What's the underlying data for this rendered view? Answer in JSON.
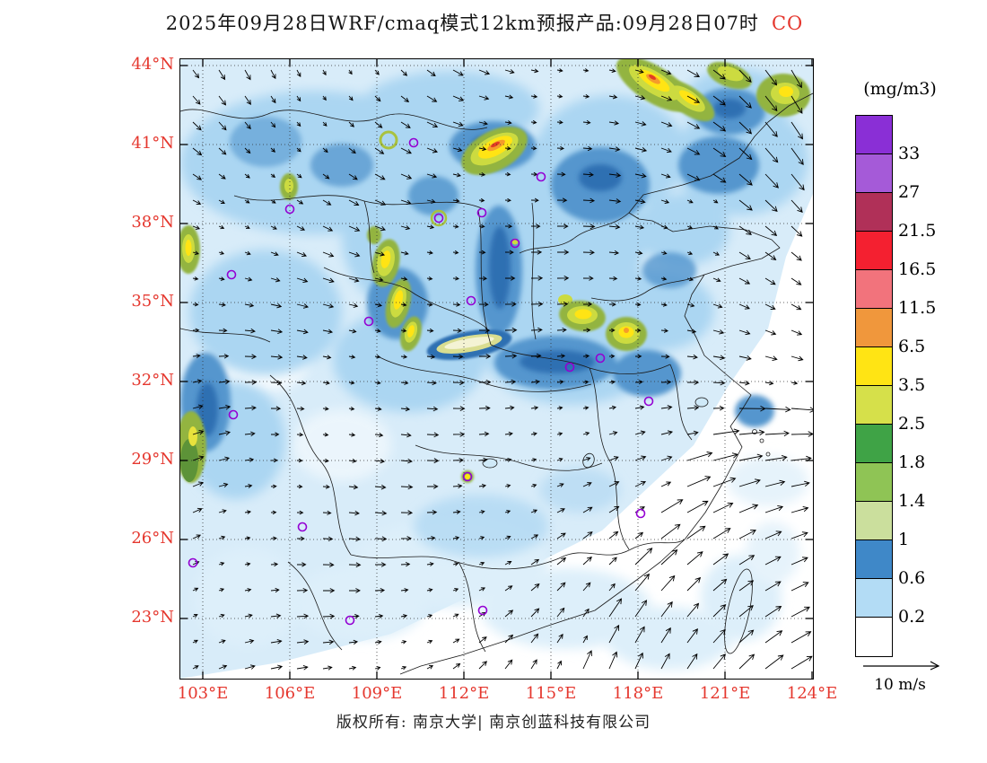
{
  "header": {
    "title": "2025年09月28日WRF/cmaq模式12km预报产品:09月28日07时",
    "pollutant": "CO"
  },
  "axes": {
    "lat_labels": [
      "44°N",
      "41°N",
      "38°N",
      "35°N",
      "32°N",
      "29°N",
      "26°N",
      "23°N"
    ],
    "lon_labels": [
      "103°E",
      "106°E",
      "109°E",
      "112°E",
      "115°E",
      "118°E",
      "121°E",
      "124°E"
    ],
    "label_color": "#e5372e"
  },
  "colorbar": {
    "units": "(mg/m3)",
    "tick_labels": [
      "33",
      "27",
      "21.5",
      "16.5",
      "11.5",
      "6.5",
      "3.5",
      "2.5",
      "1.8",
      "1.4",
      "1",
      "0.6",
      "0.2"
    ],
    "band_colors_top_to_bottom": [
      "#8a2fd6",
      "#a55ad8",
      "#b03058",
      "#f42030",
      "#f2737c",
      "#f0973c",
      "#ffe414",
      "#d6e04a",
      "#3fa346",
      "#8fc455",
      "#cbdf9d",
      "#3f88c8",
      "#b3dcf5",
      "#ffffff"
    ]
  },
  "wind_legend": {
    "label": "10 m/s"
  },
  "footer": {
    "credit": "版权所有: 南京大学| 南京创蓝科技有限公司"
  },
  "chart_data": {
    "type": "heatmap",
    "title": "2025年09月28日WRF/cmaq模式12km预报产品:09月28日07时 CO",
    "model": "WRF/cmaq",
    "resolution": "12km",
    "forecast_issue_date": "2025年09月28日",
    "valid_time": "09月28日07时",
    "pollutant": "CO",
    "units": "mg/m3",
    "x_axis": {
      "label": "longitude",
      "ticks": [
        "103°E",
        "106°E",
        "109°E",
        "112°E",
        "115°E",
        "118°E",
        "121°E",
        "124°E"
      ],
      "range": [
        103,
        124
      ]
    },
    "y_axis": {
      "label": "latitude",
      "ticks": [
        "23°N",
        "26°N",
        "29°N",
        "32°N",
        "35°N",
        "38°N",
        "41°N",
        "44°N"
      ],
      "range": [
        23,
        44
      ]
    },
    "contour_levels_mg_m3": [
      0.2,
      0.6,
      1,
      1.4,
      1.8,
      2.5,
      3.5,
      6.5,
      11.5,
      16.5,
      21.5,
      27,
      33
    ],
    "level_colors_low_to_high": [
      "#ffffff",
      "#b3dcf5",
      "#3f88c8",
      "#cbdf9d",
      "#8fc455",
      "#3fa346",
      "#d6e04a",
      "#ffe414",
      "#f0973c",
      "#f2737c",
      "#f42030",
      "#b03058",
      "#a55ad8",
      "#8a2fd6"
    ],
    "wind_vector_reference": "10 m/s",
    "field_summary": "Widespread 0.2-1 mg/m3 CO over northern and central China; hotspots of 1.4-6.5 mg/m3 over the Fenwei Plain, Shanxi, the Beijing-Hebei region, NE China and scattered cities; below 0.2 mg/m3 over the southeast coast and East China Sea; strong winds over the open sea"
  }
}
